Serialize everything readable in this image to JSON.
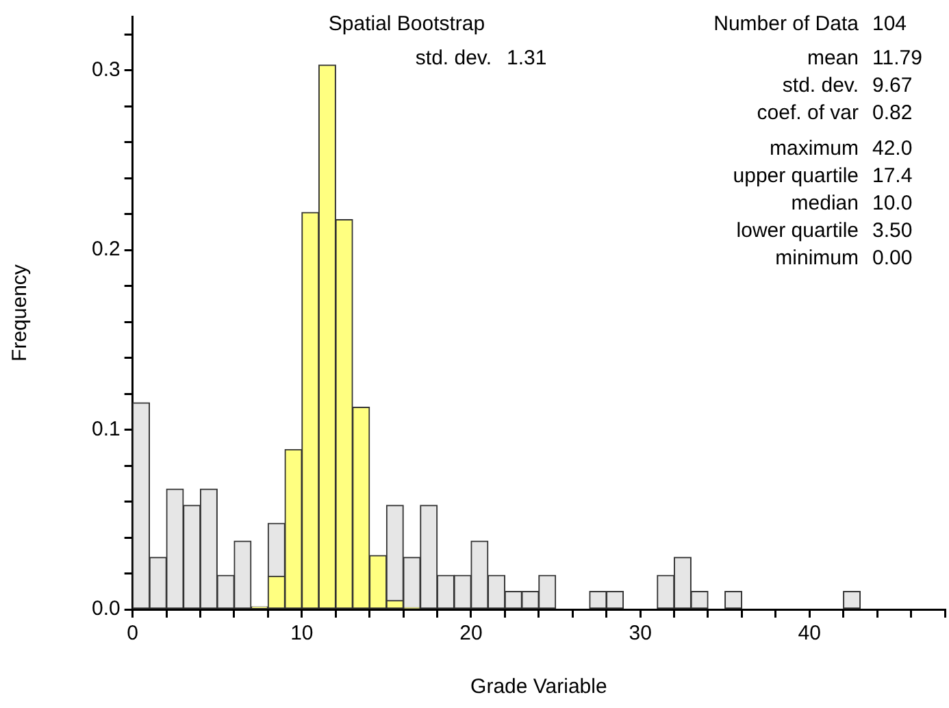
{
  "chart_data": {
    "type": "histogram",
    "xlabel": "Grade Variable",
    "ylabel": "Frequency",
    "bins": [
      0,
      1,
      2,
      3,
      4,
      5,
      6,
      7,
      8,
      9,
      10,
      11,
      12,
      13,
      14,
      15,
      16,
      17,
      18,
      19,
      20,
      21,
      22,
      23,
      24,
      25,
      26,
      27,
      28,
      29,
      30,
      31,
      32,
      33,
      34,
      35,
      36,
      37,
      38,
      39,
      40,
      41,
      42,
      43,
      44,
      45,
      46,
      47,
      48
    ],
    "series": [
      {
        "color": "#e6e6e6",
        "values": [
          0.115,
          0.029,
          0.067,
          0.058,
          0.067,
          0.019,
          0.038,
          0,
          0.048,
          null,
          null,
          null,
          null,
          null,
          null,
          0.058,
          0.029,
          0.058,
          0.019,
          0.019,
          0.038,
          0.019,
          0.01,
          0.01,
          0.019,
          0,
          0,
          0.01,
          0.01,
          0,
          0,
          0.019,
          0.029,
          0.01,
          0,
          0.01,
          0,
          0,
          0,
          0,
          0,
          0,
          0.01,
          0,
          0,
          0,
          0,
          0
        ]
      },
      {
        "color": "#ffff80",
        "values": [
          0,
          0,
          0,
          0,
          0,
          0,
          0,
          0.0015,
          0.0185,
          0.089,
          0.221,
          0.303,
          0.217,
          0.1125,
          0.03,
          0.005,
          0.001,
          0,
          0,
          0,
          0,
          0,
          0,
          0,
          0,
          0,
          0,
          0,
          0,
          0,
          0,
          0,
          0,
          0,
          0,
          0,
          0,
          0,
          0,
          0,
          0,
          0,
          0,
          0,
          0,
          0,
          0,
          0
        ]
      }
    ],
    "xlim": [
      0,
      48
    ],
    "xticks": [
      0,
      {
        "value": 2,
        "label": null
      },
      {
        "value": 4,
        "label": null
      },
      {
        "value": 6,
        "label": null
      },
      {
        "value": 8,
        "label": null
      },
      10,
      {
        "value": 12,
        "label": null
      },
      {
        "value": 14,
        "label": null
      },
      {
        "value": 16,
        "label": null
      },
      {
        "value": 18,
        "label": null
      },
      20,
      {
        "value": 22,
        "label": null
      },
      {
        "value": 24,
        "label": null
      },
      {
        "value": 26,
        "label": null
      },
      {
        "value": 28,
        "label": null
      },
      30,
      {
        "value": 32,
        "label": null
      },
      {
        "value": 34,
        "label": null
      },
      {
        "value": 36,
        "label": null
      },
      {
        "value": 38,
        "label": null
      },
      40,
      {
        "value": 42,
        "label": null
      },
      {
        "value": 44,
        "label": null
      },
      {
        "value": 46,
        "label": null
      },
      {
        "value": 48,
        "label": null
      }
    ],
    "ylim": [
      0,
      0.33
    ],
    "yticks": [
      {
        "value": 0,
        "label": "0.0"
      },
      {
        "value": 0.02,
        "label": null
      },
      {
        "value": 0.04,
        "label": null
      },
      {
        "value": 0.06,
        "label": null
      },
      {
        "value": 0.08,
        "label": null
      },
      0.1,
      {
        "value": 0.12,
        "label": null
      },
      {
        "value": 0.14,
        "label": null
      },
      {
        "value": 0.16,
        "label": null
      },
      {
        "value": 0.18,
        "label": null
      },
      0.2,
      {
        "value": 0.22,
        "label": null
      },
      {
        "value": 0.24,
        "label": null
      },
      {
        "value": 0.26,
        "label": null
      },
      {
        "value": 0.28,
        "label": null
      },
      0.3,
      {
        "value": 0.32,
        "label": null
      }
    ],
    "annotations": [
      "Spatial Bootstrap",
      "std. dev.",
      "1.31",
      "Number of Data",
      "104",
      "mean",
      "11.79",
      "std. dev.",
      "9.67",
      "coef. of var",
      "0.82",
      "maximum",
      "42.0",
      "upper quartile",
      "17.4",
      "median",
      "10.0",
      "lower quartile",
      "3.50",
      "minimum",
      "0.00"
    ]
  }
}
